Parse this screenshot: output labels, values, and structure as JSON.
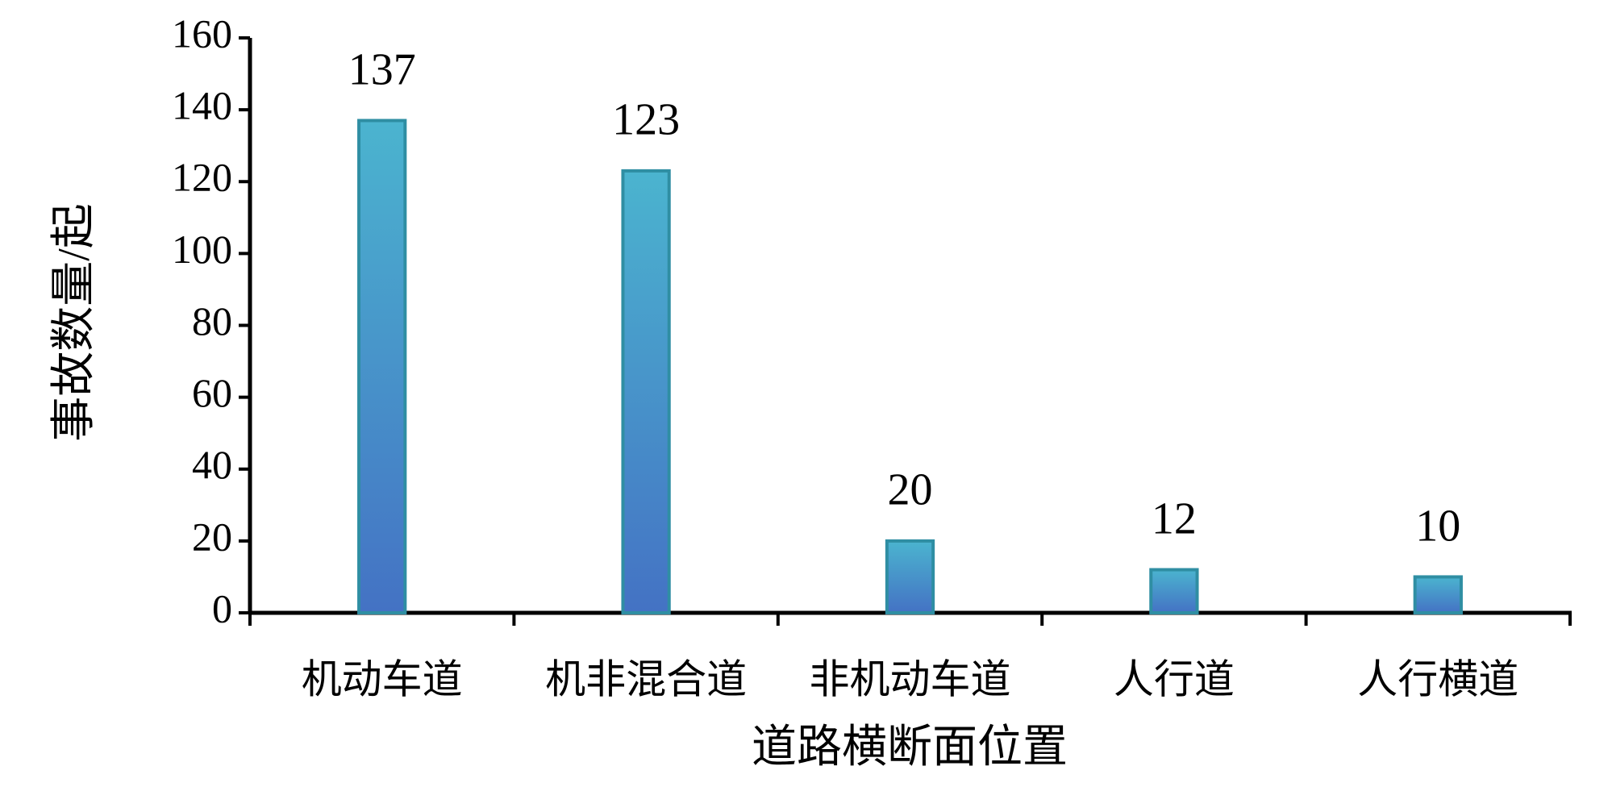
{
  "chart_data": {
    "type": "bar",
    "x_label": "道路横断面位置",
    "y_label": "事故数量/起",
    "categories": [
      "机动车道",
      "机非混合道",
      "非机动车道",
      "人行道",
      "人行横道"
    ],
    "values": [
      137,
      123,
      20,
      12,
      10
    ],
    "color": "#4472c4",
    "ylim": [
      0,
      160
    ],
    "yticks": [
      0,
      20,
      40,
      60,
      80,
      100,
      120,
      140,
      160
    ],
    "grid": false
  }
}
